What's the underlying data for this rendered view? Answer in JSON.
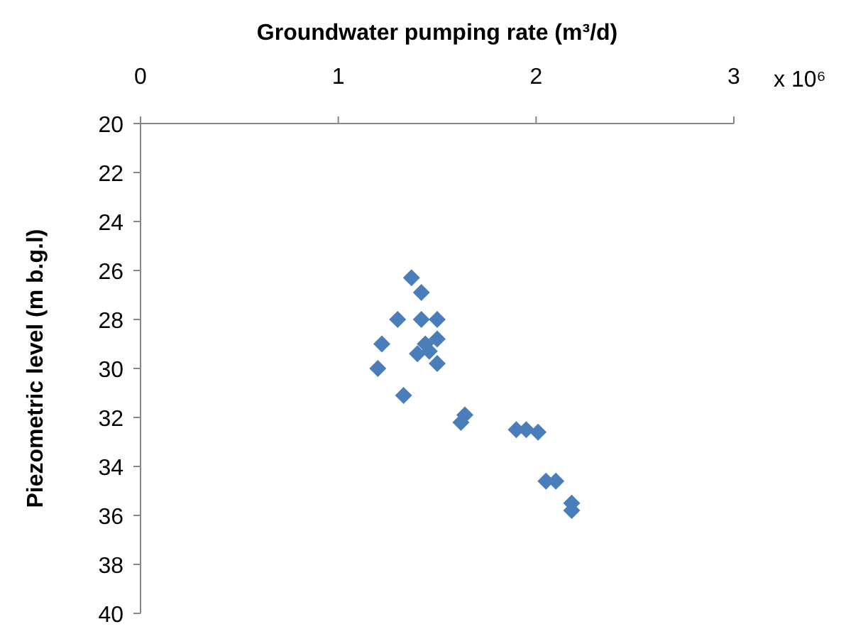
{
  "chart_data": {
    "type": "scatter",
    "xlabel": "Groundwater pumping rate (m³/d)",
    "ylabel": "Piezometric level (m b.g.l)",
    "annotations": [
      "x 10⁶"
    ],
    "xlim": [
      0,
      3
    ],
    "xticks": [
      0,
      1,
      2,
      3
    ],
    "ylim": [
      40,
      20
    ],
    "yticks": [
      20,
      22,
      24,
      26,
      28,
      30,
      32,
      34,
      36,
      38,
      40
    ],
    "marker": "diamond",
    "series": [
      {
        "color": "#4a7ebb",
        "x": [
          1.37,
          1.42,
          1.3,
          1.42,
          1.5,
          1.5,
          1.44,
          1.22,
          1.4,
          1.46,
          1.5,
          1.2,
          1.33,
          1.64,
          1.62,
          1.9,
          1.95,
          2.01,
          2.05,
          2.1,
          2.18,
          2.18
        ],
        "values": [
          26.3,
          26.9,
          28.0,
          28.0,
          28.0,
          28.8,
          29.0,
          29.0,
          29.4,
          29.3,
          29.8,
          30.0,
          31.1,
          31.9,
          32.2,
          32.5,
          32.5,
          32.6,
          34.6,
          34.6,
          35.5,
          35.8
        ]
      }
    ]
  }
}
